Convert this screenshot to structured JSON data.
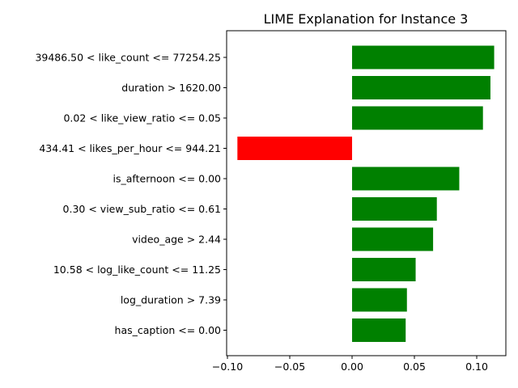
{
  "chart_data": {
    "type": "bar",
    "orientation": "horizontal",
    "title": "LIME Explanation for Instance 3",
    "xlabel": "",
    "ylabel": "",
    "xlim": [
      -0.1,
      0.125
    ],
    "xticks": [
      "−0.10",
      "−0.05",
      "0.00",
      "0.05",
      "0.10"
    ],
    "xtick_values": [
      -0.1,
      -0.05,
      0.0,
      0.05,
      0.1
    ],
    "grid": false,
    "colors": {
      "positive": "#008000",
      "negative": "#ff0000"
    },
    "categories": [
      "39486.50 < like_count <= 77254.25",
      "duration > 1620.00",
      "0.02 < like_view_ratio <= 0.05",
      "434.41 < likes_per_hour <= 944.21",
      "is_afternoon <= 0.00",
      "0.30 < view_sub_ratio <= 0.61",
      "video_age > 2.44",
      "10.58 < log_like_count <= 11.25",
      "log_duration > 7.39",
      "has_caption <= 0.00"
    ],
    "values": [
      0.114,
      0.111,
      0.105,
      -0.092,
      0.086,
      0.068,
      0.065,
      0.051,
      0.044,
      0.043
    ]
  }
}
